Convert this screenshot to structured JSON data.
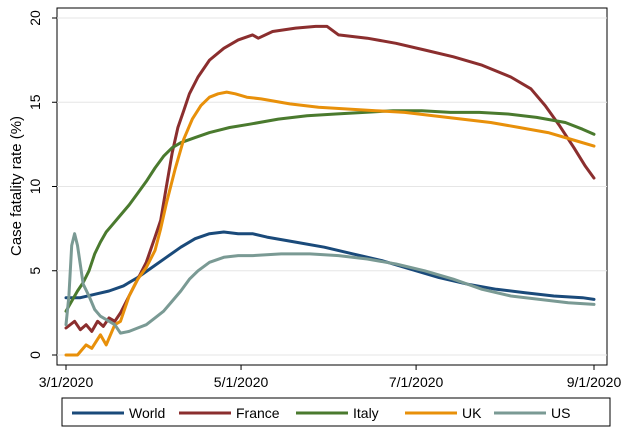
{
  "chart_data": {
    "type": "line",
    "xlabel": "",
    "ylabel": "Case fatality rate (%)",
    "ylim": [
      0,
      20
    ],
    "yticks": [
      0,
      5,
      10,
      15,
      20
    ],
    "xlim": [
      "2020-03-01",
      "2020-09-01"
    ],
    "xticks": [
      {
        "date": "2020-03-01",
        "label": "3/1/2020"
      },
      {
        "date": "2020-05-01",
        "label": "5/1/2020"
      },
      {
        "date": "2020-07-01",
        "label": "7/1/2020"
      },
      {
        "date": "2020-09-01",
        "label": "9/1/2020"
      }
    ],
    "grid": "horizontal",
    "legend_position": "bottom",
    "series": [
      {
        "name": "World",
        "color": "#1a4a7a",
        "points": [
          [
            "2020-03-01",
            3.4
          ],
          [
            "2020-03-06",
            3.4
          ],
          [
            "2020-03-11",
            3.6
          ],
          [
            "2020-03-16",
            3.8
          ],
          [
            "2020-03-21",
            4.1
          ],
          [
            "2020-03-26",
            4.6
          ],
          [
            "2020-03-31",
            5.2
          ],
          [
            "2020-04-05",
            5.8
          ],
          [
            "2020-04-10",
            6.4
          ],
          [
            "2020-04-15",
            6.9
          ],
          [
            "2020-04-20",
            7.2
          ],
          [
            "2020-04-25",
            7.3
          ],
          [
            "2020-04-30",
            7.2
          ],
          [
            "2020-05-05",
            7.2
          ],
          [
            "2020-05-10",
            7.0
          ],
          [
            "2020-05-20",
            6.7
          ],
          [
            "2020-05-30",
            6.4
          ],
          [
            "2020-06-09",
            6.0
          ],
          [
            "2020-06-19",
            5.6
          ],
          [
            "2020-06-29",
            5.1
          ],
          [
            "2020-07-09",
            4.6
          ],
          [
            "2020-07-19",
            4.2
          ],
          [
            "2020-07-29",
            3.9
          ],
          [
            "2020-08-08",
            3.7
          ],
          [
            "2020-08-18",
            3.5
          ],
          [
            "2020-08-28",
            3.4
          ],
          [
            "2020-09-01",
            3.3
          ]
        ]
      },
      {
        "name": "France",
        "color": "#8b2e2e",
        "points": [
          [
            "2020-03-01",
            1.6
          ],
          [
            "2020-03-04",
            2.0
          ],
          [
            "2020-03-06",
            1.5
          ],
          [
            "2020-03-08",
            1.8
          ],
          [
            "2020-03-10",
            1.4
          ],
          [
            "2020-03-12",
            2.0
          ],
          [
            "2020-03-14",
            1.7
          ],
          [
            "2020-03-16",
            2.2
          ],
          [
            "2020-03-18",
            2.0
          ],
          [
            "2020-03-20",
            2.5
          ],
          [
            "2020-03-23",
            3.5
          ],
          [
            "2020-03-26",
            4.5
          ],
          [
            "2020-03-29",
            5.5
          ],
          [
            "2020-04-01",
            7.0
          ],
          [
            "2020-04-03",
            8.0
          ],
          [
            "2020-04-05",
            10.0
          ],
          [
            "2020-04-07",
            12.0
          ],
          [
            "2020-04-09",
            13.5
          ],
          [
            "2020-04-11",
            14.5
          ],
          [
            "2020-04-13",
            15.5
          ],
          [
            "2020-04-16",
            16.5
          ],
          [
            "2020-04-20",
            17.5
          ],
          [
            "2020-04-25",
            18.2
          ],
          [
            "2020-04-30",
            18.7
          ],
          [
            "2020-05-05",
            19.0
          ],
          [
            "2020-05-07",
            18.8
          ],
          [
            "2020-05-12",
            19.2
          ],
          [
            "2020-05-20",
            19.4
          ],
          [
            "2020-05-27",
            19.5
          ],
          [
            "2020-05-31",
            19.5
          ],
          [
            "2020-06-04",
            19.0
          ],
          [
            "2020-06-14",
            18.8
          ],
          [
            "2020-06-24",
            18.5
          ],
          [
            "2020-07-04",
            18.1
          ],
          [
            "2020-07-14",
            17.7
          ],
          [
            "2020-07-24",
            17.2
          ],
          [
            "2020-08-03",
            16.5
          ],
          [
            "2020-08-10",
            15.8
          ],
          [
            "2020-08-15",
            14.8
          ],
          [
            "2020-08-20",
            13.6
          ],
          [
            "2020-08-25",
            12.3
          ],
          [
            "2020-08-29",
            11.2
          ],
          [
            "2020-09-01",
            10.5
          ]
        ]
      },
      {
        "name": "Italy",
        "color": "#4a7a2e",
        "points": [
          [
            "2020-03-01",
            2.6
          ],
          [
            "2020-03-03",
            3.2
          ],
          [
            "2020-03-05",
            3.8
          ],
          [
            "2020-03-07",
            4.3
          ],
          [
            "2020-03-09",
            5.0
          ],
          [
            "2020-03-11",
            6.0
          ],
          [
            "2020-03-13",
            6.7
          ],
          [
            "2020-03-15",
            7.3
          ],
          [
            "2020-03-17",
            7.7
          ],
          [
            "2020-03-20",
            8.3
          ],
          [
            "2020-03-23",
            8.9
          ],
          [
            "2020-03-26",
            9.6
          ],
          [
            "2020-03-29",
            10.3
          ],
          [
            "2020-04-01",
            11.1
          ],
          [
            "2020-04-04",
            11.8
          ],
          [
            "2020-04-07",
            12.3
          ],
          [
            "2020-04-10",
            12.6
          ],
          [
            "2020-04-15",
            12.9
          ],
          [
            "2020-04-20",
            13.2
          ],
          [
            "2020-04-27",
            13.5
          ],
          [
            "2020-05-04",
            13.7
          ],
          [
            "2020-05-14",
            14.0
          ],
          [
            "2020-05-24",
            14.2
          ],
          [
            "2020-06-03",
            14.3
          ],
          [
            "2020-06-13",
            14.4
          ],
          [
            "2020-06-23",
            14.5
          ],
          [
            "2020-07-03",
            14.5
          ],
          [
            "2020-07-13",
            14.4
          ],
          [
            "2020-07-23",
            14.4
          ],
          [
            "2020-08-02",
            14.3
          ],
          [
            "2020-08-12",
            14.1
          ],
          [
            "2020-08-22",
            13.8
          ],
          [
            "2020-08-28",
            13.4
          ],
          [
            "2020-09-01",
            13.1
          ]
        ]
      },
      {
        "name": "UK",
        "color": "#e8900a",
        "points": [
          [
            "2020-03-01",
            0.0
          ],
          [
            "2020-03-05",
            0.0
          ],
          [
            "2020-03-08",
            0.6
          ],
          [
            "2020-03-10",
            0.4
          ],
          [
            "2020-03-13",
            1.2
          ],
          [
            "2020-03-15",
            0.6
          ],
          [
            "2020-03-18",
            1.8
          ],
          [
            "2020-03-20",
            2.0
          ],
          [
            "2020-03-23",
            3.5
          ],
          [
            "2020-03-26",
            4.5
          ],
          [
            "2020-03-29",
            5.2
          ],
          [
            "2020-04-01",
            6.2
          ],
          [
            "2020-04-03",
            7.5
          ],
          [
            "2020-04-05",
            9.0
          ],
          [
            "2020-04-08",
            11.0
          ],
          [
            "2020-04-11",
            12.8
          ],
          [
            "2020-04-14",
            14.0
          ],
          [
            "2020-04-17",
            14.8
          ],
          [
            "2020-04-20",
            15.3
          ],
          [
            "2020-04-23",
            15.5
          ],
          [
            "2020-04-26",
            15.6
          ],
          [
            "2020-04-29",
            15.5
          ],
          [
            "2020-05-03",
            15.3
          ],
          [
            "2020-05-08",
            15.2
          ],
          [
            "2020-05-18",
            14.9
          ],
          [
            "2020-05-28",
            14.7
          ],
          [
            "2020-06-07",
            14.6
          ],
          [
            "2020-06-17",
            14.5
          ],
          [
            "2020-06-27",
            14.4
          ],
          [
            "2020-07-07",
            14.2
          ],
          [
            "2020-07-17",
            14.0
          ],
          [
            "2020-07-27",
            13.8
          ],
          [
            "2020-08-06",
            13.5
          ],
          [
            "2020-08-16",
            13.2
          ],
          [
            "2020-08-26",
            12.7
          ],
          [
            "2020-09-01",
            12.4
          ]
        ]
      },
      {
        "name": "US",
        "color": "#7a9a94",
        "points": [
          [
            "2020-03-01",
            1.8
          ],
          [
            "2020-03-02",
            3.5
          ],
          [
            "2020-03-03",
            6.5
          ],
          [
            "2020-03-04",
            7.2
          ],
          [
            "2020-03-05",
            6.5
          ],
          [
            "2020-03-07",
            4.2
          ],
          [
            "2020-03-09",
            3.5
          ],
          [
            "2020-03-11",
            2.7
          ],
          [
            "2020-03-13",
            2.3
          ],
          [
            "2020-03-15",
            2.1
          ],
          [
            "2020-03-18",
            1.8
          ],
          [
            "2020-03-20",
            1.3
          ],
          [
            "2020-03-23",
            1.4
          ],
          [
            "2020-03-26",
            1.6
          ],
          [
            "2020-03-29",
            1.8
          ],
          [
            "2020-04-01",
            2.2
          ],
          [
            "2020-04-04",
            2.6
          ],
          [
            "2020-04-07",
            3.2
          ],
          [
            "2020-04-10",
            3.8
          ],
          [
            "2020-04-13",
            4.5
          ],
          [
            "2020-04-16",
            5.0
          ],
          [
            "2020-04-20",
            5.5
          ],
          [
            "2020-04-25",
            5.8
          ],
          [
            "2020-04-30",
            5.9
          ],
          [
            "2020-05-05",
            5.9
          ],
          [
            "2020-05-15",
            6.0
          ],
          [
            "2020-05-25",
            6.0
          ],
          [
            "2020-06-04",
            5.9
          ],
          [
            "2020-06-14",
            5.7
          ],
          [
            "2020-06-24",
            5.4
          ],
          [
            "2020-07-04",
            5.0
          ],
          [
            "2020-07-14",
            4.5
          ],
          [
            "2020-07-24",
            3.9
          ],
          [
            "2020-08-03",
            3.5
          ],
          [
            "2020-08-13",
            3.3
          ],
          [
            "2020-08-23",
            3.1
          ],
          [
            "2020-09-01",
            3.0
          ]
        ]
      }
    ]
  }
}
